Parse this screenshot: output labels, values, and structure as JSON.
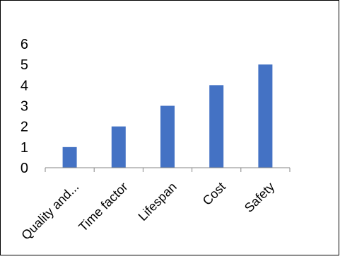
{
  "chart_data": {
    "type": "bar",
    "title": "",
    "xlabel": "",
    "ylabel": "",
    "categories": [
      "Quality and...",
      "Time factor",
      "Lifespan",
      "Cost",
      "Safety"
    ],
    "values": [
      1,
      2,
      3,
      4,
      5
    ],
    "ylim": [
      0,
      6
    ],
    "yticks": [
      "0",
      "1",
      "2",
      "3",
      "4",
      "5",
      "6"
    ],
    "grid": false,
    "legend": "none",
    "bar_color": "#4472C4",
    "axis_color": "#868686"
  }
}
